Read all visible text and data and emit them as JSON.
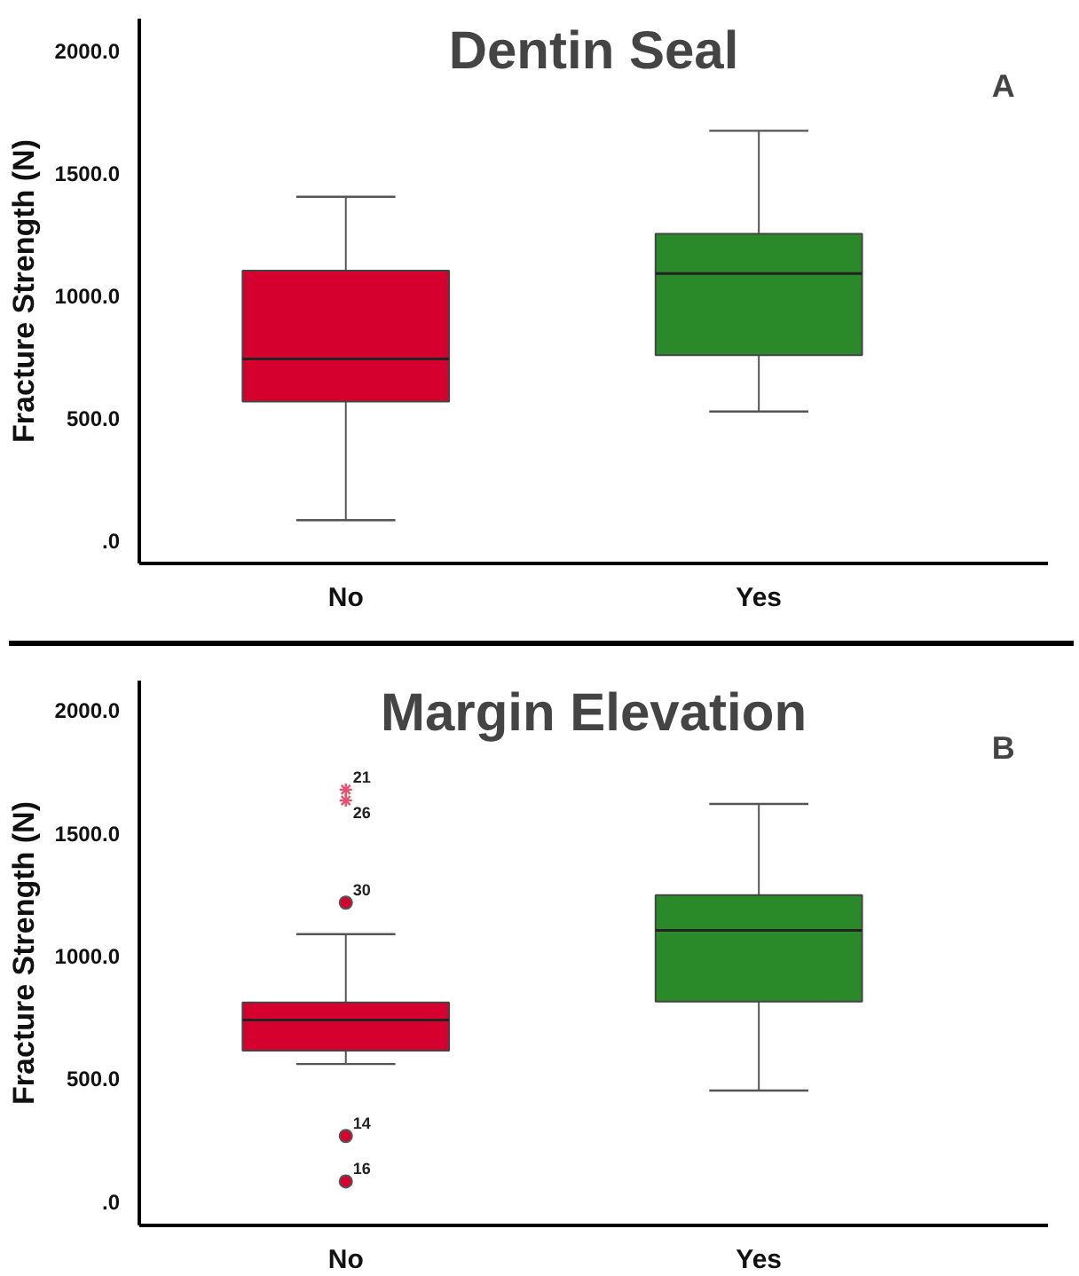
{
  "chart_data": [
    {
      "type": "box",
      "title": "Dentin Seal",
      "ylabel": "Fracture Strength (N)",
      "categories": [
        "No",
        "Yes"
      ],
      "ylim": [
        -96,
        2130
      ],
      "yticks": [
        {
          "value": 0,
          "label": ".0"
        },
        {
          "value": 500,
          "label": "500.0"
        },
        {
          "value": 1000,
          "label": "1000.0"
        },
        {
          "value": 1500,
          "label": "1500.0"
        },
        {
          "value": 2000,
          "label": "2000.0"
        }
      ],
      "colors": [
        "#d6002f",
        "#2a8a2a"
      ],
      "grid": false,
      "legend": false,
      "boxes": [
        {
          "low": 81,
          "q1": 566,
          "median": 740,
          "q3": 1100,
          "high": 1402
        },
        {
          "low": 525,
          "q1": 755,
          "median": 1089,
          "q3": 1251,
          "high": 1672
        }
      ],
      "annotations": [
        "A"
      ]
    },
    {
      "type": "box",
      "title": "Margin Elevation",
      "ylabel": "Fracture Strength (N)",
      "categories": [
        "No",
        "Yes"
      ],
      "ylim": [
        -98,
        2120
      ],
      "yticks": [
        {
          "value": 0,
          "label": ".0"
        },
        {
          "value": 500,
          "label": "500.0"
        },
        {
          "value": 1000,
          "label": "1000.0"
        },
        {
          "value": 1500,
          "label": "1500.0"
        },
        {
          "value": 2000,
          "label": "2000.0"
        }
      ],
      "colors": [
        "#d6002f",
        "#2a8a2a"
      ],
      "grid": false,
      "legend": false,
      "boxes": [
        {
          "low": 559,
          "q1": 614,
          "median": 738,
          "q3": 810,
          "high": 1088,
          "outliers": [
            1676,
            1632,
            1216,
            266,
            81
          ]
        },
        {
          "low": 451,
          "q1": 813,
          "median": 1103,
          "q3": 1247,
          "high": 1618
        }
      ],
      "annotations": [
        "B",
        "21",
        "26",
        "30",
        "14",
        "16"
      ]
    }
  ]
}
